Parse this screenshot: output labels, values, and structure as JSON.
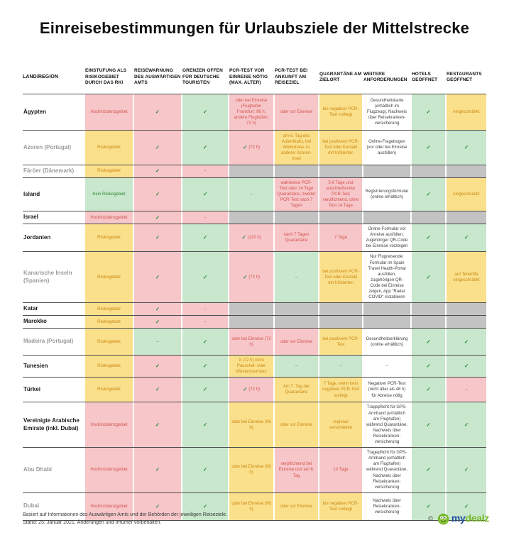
{
  "title": "Einreisebestimmungen für Urlaubsziele der Mittelstrecke",
  "colors": {
    "pink": "#f7c6c9",
    "green": "#c8e7cc",
    "yellow": "#fbe08c",
    "gray": "#c3c3c3",
    "red_text": "#d4524e",
    "green_text": "#2e8b3a",
    "amber_text": "#c8870f",
    "logo_blue": "#1d4f9e",
    "logo_green": "#76b729"
  },
  "table": {
    "check_glyph": "✓",
    "columns": [
      {
        "key": "land",
        "label": "LAND/REGION"
      },
      {
        "key": "einstufung-rki",
        "label": "EINSTUFUNG ALS RISIKOGEBIET DURCH DAS RKI"
      },
      {
        "key": "reisewarnung",
        "label": "REISEWARNUNG DES AUSWÄRTIGEN AMTS"
      },
      {
        "key": "grenzen-offen",
        "label": "GRENZEN OFFEN FÜR DEUTSCHE TOURISTEN"
      },
      {
        "key": "pcr-vor-einreise",
        "label": "PCR-TEST VOR EINREISE NÖTIG (MAX. ALTER)"
      },
      {
        "key": "pcr-ankunft",
        "label": "PCR-TEST BEI ANKUNFT AM REISEZIEL"
      },
      {
        "key": "quarantaene",
        "label": "QUARANTÄNE AM ZIELORT"
      },
      {
        "key": "weitere",
        "label": "WEITERE ANFORDERUNGEN"
      },
      {
        "key": "hotels",
        "label": "HOTELS GEÖFFNET"
      },
      {
        "key": "restaurants",
        "label": "RESTAURANTS GEÖFFNET"
      }
    ],
    "rows": [
      {
        "land": "Ägypten",
        "muted": false,
        "cells": [
          {
            "text": "Hochinzidenzgebiet",
            "bg": "pink",
            "fg": "red"
          },
          {
            "check": true,
            "bg": "pink"
          },
          {
            "check": true,
            "bg": "green"
          },
          {
            "text": "oder bei Einreise (Flughafen Frankfurt: 96 h, andere Flughäfen: 72 h)",
            "bg": "pink",
            "fg": "red"
          },
          {
            "text": "oder vor Einreise",
            "bg": "pink",
            "fg": "red"
          },
          {
            "text": "bis negativer PCR-Test vorliegt",
            "bg": "yellow",
            "fg": "amber"
          },
          {
            "text": "Gesundheitskarte (erhältlich im Flugzeug), Nachweis über Reisekranken-versicherung",
            "bg": "white",
            "fg": "dark"
          },
          {
            "check": true,
            "bg": "green"
          },
          {
            "text": "eingeschränkt",
            "bg": "yellow",
            "fg": "amber"
          }
        ]
      },
      {
        "land": "Azoren (Portugal)",
        "muted": true,
        "cells": [
          {
            "text": "Risikogebiet",
            "bg": "yellow",
            "fg": "amber"
          },
          {
            "check": true,
            "bg": "pink"
          },
          {
            "check": true,
            "bg": "green"
          },
          {
            "check": true,
            "text": "(72 h)",
            "bg": "pink",
            "fg": "red"
          },
          {
            "text": "am 6. Tag des Aufenthalts, bei Weiterreise zu anderer Azoren-Insel",
            "bg": "yellow",
            "fg": "amber"
          },
          {
            "text": "bei positivem PCR-Test oder Kontakt mit Infizierten",
            "bg": "yellow",
            "fg": "amber"
          },
          {
            "text": "Online-Fragebogen (vor oder bei Einreise ausfüllen)",
            "bg": "white",
            "fg": "dark"
          },
          {
            "check": true,
            "bg": "green"
          },
          {
            "check": true,
            "bg": "green"
          }
        ]
      },
      {
        "land": "Färöer (Dänemark)",
        "muted": true,
        "cells": [
          {
            "text": "Risikogebiet",
            "bg": "yellow",
            "fg": "amber"
          },
          {
            "check": true,
            "bg": "pink"
          },
          {
            "text": "–",
            "bg": "pink",
            "fg": "red"
          },
          {
            "bg": "gray"
          },
          {
            "bg": "gray"
          },
          {
            "bg": "gray"
          },
          {
            "bg": "gray"
          },
          {
            "bg": "gray"
          },
          {
            "bg": "gray"
          }
        ]
      },
      {
        "land": "Island",
        "muted": false,
        "cells": [
          {
            "text": "Kein Risikogebiet",
            "bg": "green",
            "fg": "green"
          },
          {
            "check": true,
            "bg": "pink"
          },
          {
            "check": true,
            "bg": "green"
          },
          {
            "text": "–",
            "bg": "green",
            "fg": "green"
          },
          {
            "text": "wahlweise PCR-Test oder 14 Tage Quarantäne, zweiter PCR-Test nach 7 Tagen",
            "bg": "pink",
            "fg": "red"
          },
          {
            "text": "5-6 Tage und anschließender PCR-Test verpflichtend, ohne Test 14 Tage",
            "bg": "pink",
            "fg": "red"
          },
          {
            "text": "Registrierungsformular (online erhältlich)",
            "bg": "white",
            "fg": "dark"
          },
          {
            "check": true,
            "bg": "green"
          },
          {
            "text": "eingeschränkt",
            "bg": "yellow",
            "fg": "amber"
          }
        ]
      },
      {
        "land": "Israel",
        "muted": false,
        "cells": [
          {
            "text": "Hochinzidenzgebiet",
            "bg": "pink",
            "fg": "red"
          },
          {
            "check": true,
            "bg": "pink"
          },
          {
            "text": "–",
            "bg": "pink",
            "fg": "red"
          },
          {
            "bg": "gray"
          },
          {
            "bg": "gray"
          },
          {
            "bg": "gray"
          },
          {
            "bg": "gray"
          },
          {
            "bg": "gray"
          },
          {
            "bg": "gray"
          }
        ]
      },
      {
        "land": "Jordanien",
        "muted": false,
        "cells": [
          {
            "text": "Risikogebiet",
            "bg": "yellow",
            "fg": "amber"
          },
          {
            "check": true,
            "bg": "pink"
          },
          {
            "check": true,
            "bg": "green"
          },
          {
            "check": true,
            "text": "(120 h)",
            "bg": "pink",
            "fg": "red"
          },
          {
            "text": "nach 7 Tagen Quarantäne",
            "bg": "pink",
            "fg": "red"
          },
          {
            "text": "7 Tage",
            "bg": "pink",
            "fg": "red"
          },
          {
            "text": "Online-Formular vor Anreise ausfüllen, zugehöriger QR-Code bei Einreise vorzeigen",
            "bg": "white",
            "fg": "dark"
          },
          {
            "check": true,
            "bg": "green"
          },
          {
            "check": true,
            "bg": "green"
          }
        ]
      },
      {
        "land": "Kanarische Inseln (Spanien)",
        "muted": true,
        "cells": [
          {
            "text": "Risikogebiet",
            "bg": "yellow",
            "fg": "amber"
          },
          {
            "check": true,
            "bg": "pink"
          },
          {
            "check": true,
            "bg": "green"
          },
          {
            "check": true,
            "text": "(72 h)",
            "bg": "pink",
            "fg": "red"
          },
          {
            "text": "–",
            "bg": "green",
            "fg": "green"
          },
          {
            "text": "bei positivem PCR-Test oder Kontakt mit Infizierten",
            "bg": "yellow",
            "fg": "amber"
          },
          {
            "text": "Nur Flugreisende: Formular im Spain Travel Health-Portal ausfüllen, zugehörigen QR-Code bei Einreise zeigen, App \"Radar COVID\" installieren",
            "bg": "white",
            "fg": "dark"
          },
          {
            "check": true,
            "bg": "green"
          },
          {
            "text": "auf Teneriffa eingeschränkt",
            "bg": "yellow",
            "fg": "amber"
          }
        ]
      },
      {
        "land": "Katar",
        "muted": false,
        "cells": [
          {
            "text": "Risikogebiet",
            "bg": "yellow",
            "fg": "amber"
          },
          {
            "check": true,
            "bg": "pink"
          },
          {
            "text": "–",
            "bg": "pink",
            "fg": "red"
          },
          {
            "bg": "gray"
          },
          {
            "bg": "gray"
          },
          {
            "bg": "gray"
          },
          {
            "bg": "gray"
          },
          {
            "bg": "gray"
          },
          {
            "bg": "gray"
          }
        ]
      },
      {
        "land": "Marokko",
        "muted": false,
        "cells": [
          {
            "text": "Risikogebiet",
            "bg": "yellow",
            "fg": "amber"
          },
          {
            "check": true,
            "bg": "pink"
          },
          {
            "text": "–",
            "bg": "pink",
            "fg": "red"
          },
          {
            "bg": "gray"
          },
          {
            "bg": "gray"
          },
          {
            "bg": "gray"
          },
          {
            "bg": "gray"
          },
          {
            "bg": "gray"
          },
          {
            "bg": "gray"
          }
        ]
      },
      {
        "land": "Madeira (Portugal)",
        "muted": true,
        "cells": [
          {
            "text": "Risikogebiet",
            "bg": "yellow",
            "fg": "amber"
          },
          {
            "text": "–",
            "bg": "green",
            "fg": "green"
          },
          {
            "check": true,
            "bg": "green"
          },
          {
            "text": "oder bei Einreise (72 h)",
            "bg": "pink",
            "fg": "red"
          },
          {
            "text": "oder vor Einreise",
            "bg": "pink",
            "fg": "red"
          },
          {
            "text": "bei positivem PCR-Test",
            "bg": "yellow",
            "fg": "amber"
          },
          {
            "text": "Gesundheitserklärung (online erhältlich)",
            "bg": "white",
            "fg": "dark"
          },
          {
            "check": true,
            "bg": "green"
          },
          {
            "check": true,
            "bg": "green"
          }
        ]
      },
      {
        "land": "Tunesien",
        "muted": false,
        "cells": [
          {
            "text": "Risikogebiet",
            "bg": "yellow",
            "fg": "amber"
          },
          {
            "check": true,
            "bg": "pink"
          },
          {
            "check": true,
            "bg": "green"
          },
          {
            "text": "X (72 h) nicht Pauschal- oder Wüstentouristen",
            "bg": "yellow",
            "fg": "amber"
          },
          {
            "text": "–",
            "bg": "green",
            "fg": "green"
          },
          {
            "text": "–",
            "bg": "green",
            "fg": "green"
          },
          {
            "text": "–",
            "bg": "white",
            "fg": "dark"
          },
          {
            "check": true,
            "bg": "green"
          },
          {
            "check": true,
            "bg": "green"
          }
        ]
      },
      {
        "land": "Türkei",
        "muted": false,
        "cells": [
          {
            "text": "Risikogebiet",
            "bg": "yellow",
            "fg": "amber"
          },
          {
            "check": true,
            "bg": "pink"
          },
          {
            "check": true,
            "bg": "green"
          },
          {
            "check": true,
            "text": "(72 h)",
            "bg": "pink",
            "fg": "red"
          },
          {
            "text": "Am 7. Tag der Quarantäne",
            "bg": "yellow",
            "fg": "amber"
          },
          {
            "text": "7 Tage, wenn kein negativer PCR-Test vorliegt",
            "bg": "yellow",
            "fg": "amber"
          },
          {
            "text": "Negativer PCR-Test (nicht älter als 48 h) für Abreise nötig",
            "bg": "white",
            "fg": "dark"
          },
          {
            "check": true,
            "bg": "green"
          },
          {
            "text": "–",
            "bg": "pink",
            "fg": "red"
          }
        ]
      },
      {
        "land": "Vereinigte Arabische Emirate (inkl. Dubai)",
        "muted": false,
        "cells": [
          {
            "text": "Hochinzidenzgebiet",
            "bg": "pink",
            "fg": "red"
          },
          {
            "check": true,
            "bg": "pink"
          },
          {
            "check": true,
            "bg": "green"
          },
          {
            "text": "oder bei Einreise (96 h)",
            "bg": "yellow",
            "fg": "amber"
          },
          {
            "text": "oder vor Einreise",
            "bg": "yellow",
            "fg": "amber"
          },
          {
            "text": "regional verschieden",
            "bg": "yellow",
            "fg": "amber"
          },
          {
            "text": "Tragepflicht für GPS-Armband (erhältlich am Flughafen) während Quarantäne, Nachweis über Reisekranken-versicherung",
            "bg": "white",
            "fg": "dark"
          },
          {
            "check": true,
            "bg": "green"
          },
          {
            "check": true,
            "bg": "green"
          }
        ]
      },
      {
        "land": "Abu Dhabi",
        "muted": true,
        "cells": [
          {
            "text": "Hochinzidenzgebiet",
            "bg": "pink",
            "fg": "red"
          },
          {
            "check": true,
            "bg": "pink"
          },
          {
            "check": true,
            "bg": "green"
          },
          {
            "text": "oder bei Einreise (96 h)",
            "bg": "yellow",
            "fg": "amber"
          },
          {
            "text": "verpflichtend bei Einreise und am 6. Tag",
            "bg": "pink",
            "fg": "red"
          },
          {
            "text": "10 Tage",
            "bg": "pink",
            "fg": "red"
          },
          {
            "text": "Tragepflicht für GPS-Armband (erhältlich am Flughafen) während Quarantäne, Nachweis über Reisekranken-versicherung",
            "bg": "white",
            "fg": "dark"
          },
          {
            "check": true,
            "bg": "green"
          },
          {
            "check": true,
            "bg": "green"
          }
        ]
      },
      {
        "land": "Dubai",
        "muted": true,
        "cells": [
          {
            "text": "Hochinzidenzgebiet",
            "bg": "pink",
            "fg": "red"
          },
          {
            "check": true,
            "bg": "pink"
          },
          {
            "check": true,
            "bg": "green"
          },
          {
            "text": "oder bei Einreise (96 h)",
            "bg": "yellow",
            "fg": "amber"
          },
          {
            "text": "oder vor Einreise",
            "bg": "yellow",
            "fg": "amber"
          },
          {
            "text": "bis negativer PCR-Test vorliegt",
            "bg": "yellow",
            "fg": "amber"
          },
          {
            "text": "Nachweis über Reisekranken-versicherung",
            "bg": "white",
            "fg": "dark"
          },
          {
            "check": true,
            "bg": "green"
          },
          {
            "check": true,
            "bg": "green"
          }
        ]
      }
    ]
  },
  "footer": {
    "source_note": "Basiert auf Informationen des Auswärtigen Amts und der Behörden der jeweiligen Reiseziele.",
    "date_note": "Stand: 25. Januar 2021. Änderungen und Irrtümer vorbehalten.",
    "copyright": "©",
    "logo_my": "my",
    "logo_dealz": "dealz"
  }
}
